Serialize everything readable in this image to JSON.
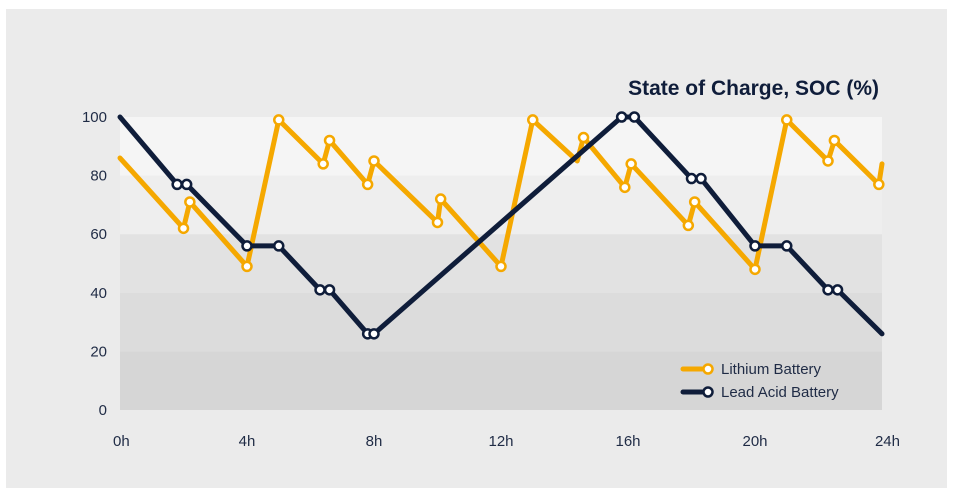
{
  "chart_data": {
    "type": "line",
    "title": "State of Charge, SOC (%)",
    "xlabel": "",
    "ylabel": "",
    "x_ticks": [
      0,
      4,
      8,
      12,
      16,
      20,
      24
    ],
    "x_tick_labels": [
      "0h",
      "4h",
      "8h",
      "12h",
      "16h",
      "20h",
      "24h"
    ],
    "y_ticks": [
      0,
      20,
      40,
      60,
      80,
      100
    ],
    "y_tick_labels": [
      "0",
      "20",
      "40",
      "60",
      "80",
      "100"
    ],
    "xlim": [
      0,
      24
    ],
    "ylim": [
      0,
      100
    ],
    "grid": false,
    "background_bands": [
      {
        "from": 0,
        "to": 20,
        "color": "#d6d6d6"
      },
      {
        "from": 20,
        "to": 40,
        "color": "#dcdcdc"
      },
      {
        "from": 40,
        "to": 60,
        "color": "#e2e2e2"
      },
      {
        "from": 60,
        "to": 80,
        "color": "#eeeeee"
      },
      {
        "from": 80,
        "to": 100,
        "color": "#f5f5f5"
      }
    ],
    "legend_position": "bottom-right",
    "series": [
      {
        "name": "Lithium Battery",
        "color": "#f5a800",
        "x": [
          0,
          2,
          2.2,
          4,
          5,
          6.4,
          6.6,
          7.8,
          8,
          10,
          10.1,
          12,
          13,
          14.4,
          14.6,
          15.9,
          16.1,
          17.9,
          18.1,
          20,
          21,
          22.3,
          22.5,
          23.9,
          24
        ],
        "y": [
          86,
          62,
          71,
          49,
          99,
          84,
          92,
          77,
          85,
          64,
          72,
          49,
          99,
          85,
          93,
          76,
          84,
          63,
          71,
          48,
          99,
          85,
          92,
          77,
          84
        ],
        "markers_x": [
          2,
          2.2,
          4,
          5,
          6.4,
          6.6,
          7.8,
          8,
          10,
          10.1,
          12,
          13,
          14.6,
          15.9,
          16.1,
          17.9,
          18.1,
          20,
          21,
          22.3,
          22.5,
          23.9
        ],
        "markers_y": [
          62,
          71,
          49,
          99,
          84,
          92,
          77,
          85,
          64,
          72,
          49,
          99,
          93,
          76,
          84,
          63,
          71,
          48,
          99,
          85,
          92,
          77
        ]
      },
      {
        "name": "Lead Acid Battery",
        "color": "#0f1d3a",
        "x": [
          0,
          1.8,
          2.1,
          4,
          5,
          6.3,
          6.6,
          7.8,
          8,
          15.8,
          16.2,
          18,
          18.3,
          20,
          21,
          22.3,
          22.6,
          24
        ],
        "y": [
          100,
          77,
          77,
          56,
          56,
          41,
          41,
          26,
          26,
          100,
          100,
          79,
          79,
          56,
          56,
          41,
          41,
          26
        ],
        "markers_x": [
          1.8,
          2.1,
          4,
          5,
          6.3,
          6.6,
          7.8,
          8,
          15.8,
          16.2,
          18,
          18.3,
          20,
          21,
          22.3,
          22.6
        ],
        "markers_y": [
          77,
          77,
          56,
          56,
          41,
          41,
          26,
          26,
          100,
          100,
          79,
          79,
          56,
          56,
          41,
          41
        ]
      }
    ]
  }
}
